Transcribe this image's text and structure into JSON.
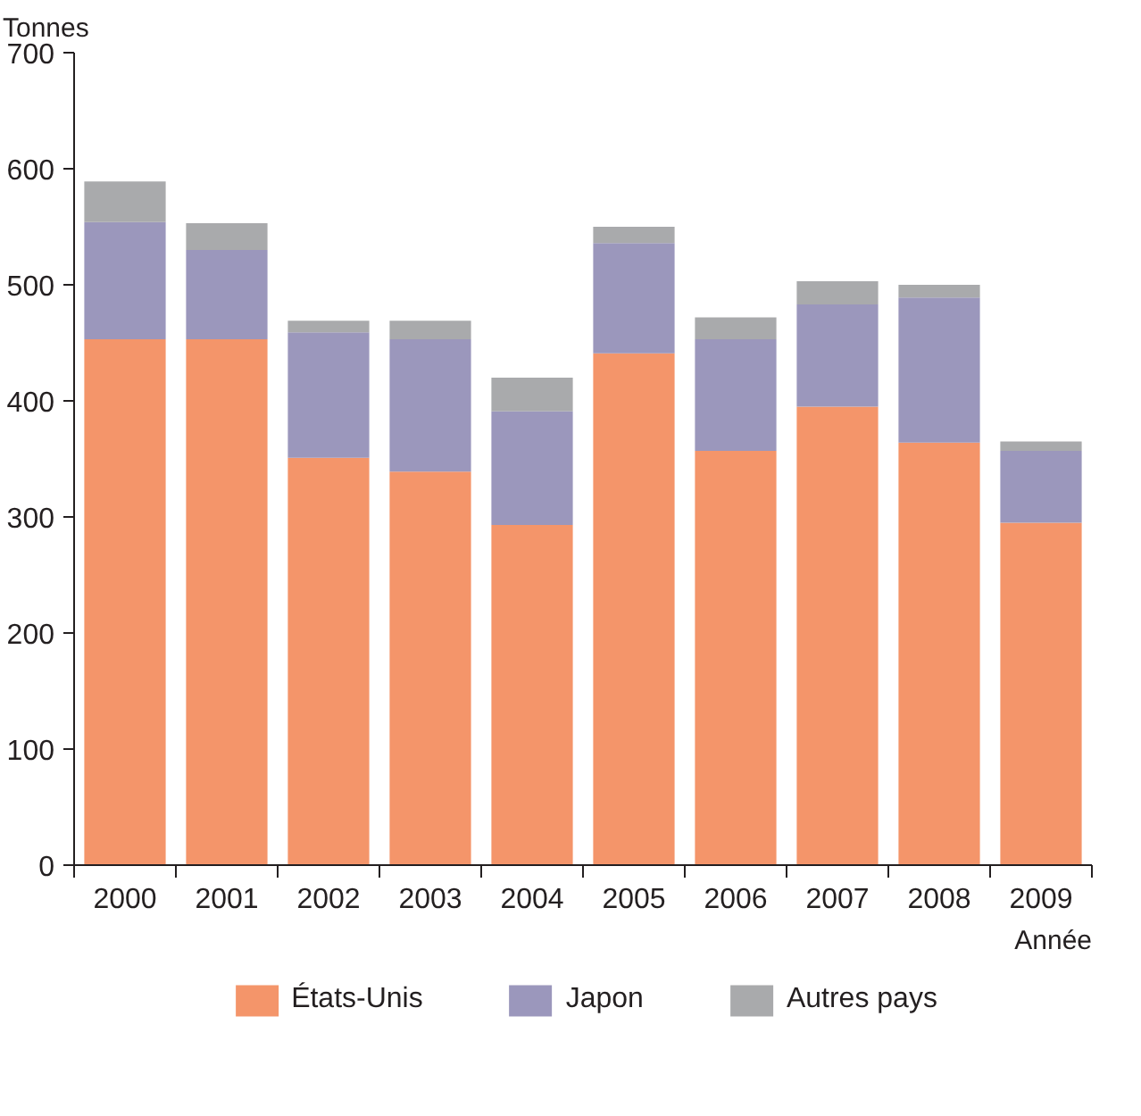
{
  "chart_data": {
    "type": "bar",
    "stacked": true,
    "ylabel": "Tonnes",
    "xlabel": "Année",
    "categories": [
      "2000",
      "2001",
      "2002",
      "2003",
      "2004",
      "2005",
      "2006",
      "2007",
      "2008",
      "2009"
    ],
    "series": [
      {
        "name": "États-Unis",
        "color": "#f4956a",
        "values": [
          453,
          453,
          351,
          339,
          293,
          441,
          357,
          395,
          364,
          295
        ]
      },
      {
        "name": "Japon",
        "color": "#9b97bc",
        "values": [
          101,
          77,
          108,
          114,
          98,
          95,
          96,
          88,
          125,
          62
        ]
      },
      {
        "name": "Autres pays",
        "color": "#a9aaac",
        "values": [
          35,
          23,
          10,
          16,
          29,
          14,
          19,
          20,
          11,
          8
        ]
      }
    ],
    "ylim": [
      0,
      700
    ],
    "yticks": [
      0,
      100,
      200,
      300,
      400,
      500,
      600,
      700
    ],
    "grid": false,
    "legend": "bottom"
  }
}
